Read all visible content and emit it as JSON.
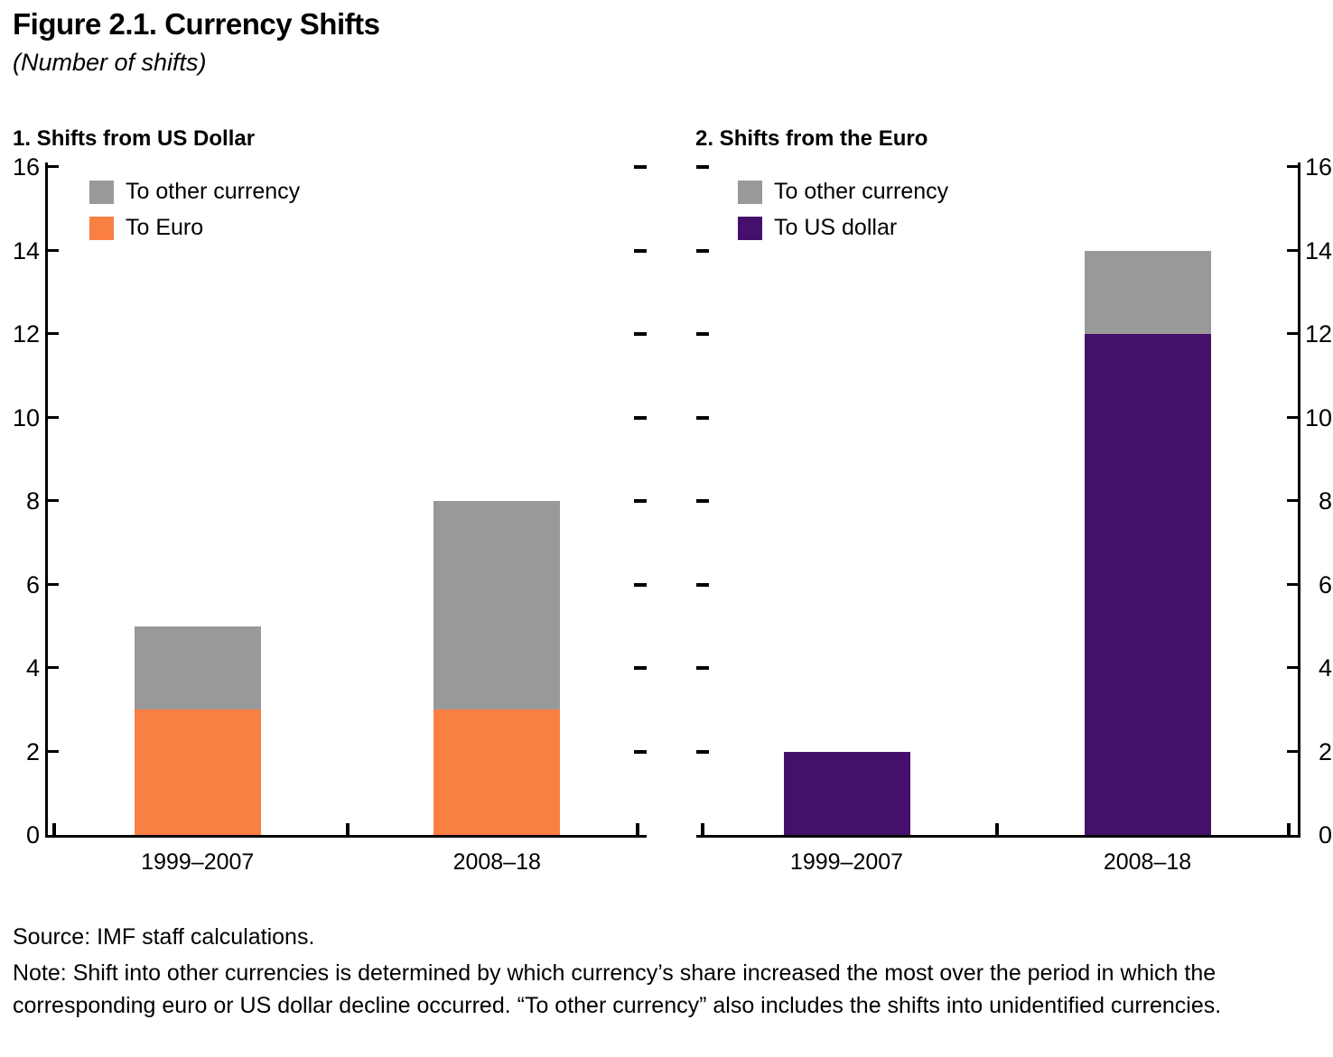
{
  "figure": {
    "title": "Figure 2.1. Currency Shifts",
    "subtitle": "(Number of shifts)"
  },
  "source_note": {
    "source": "Source: IMF staff calculations.",
    "note": "Note: Shift into other currencies is determined by which currency’s share increased the most over the period in which the corresponding euro or US dollar decline occurred. “To other currency” also includes the shifts into unidentified currencies."
  },
  "colors": {
    "gray": "#999999",
    "orange": "#FA7F43",
    "purple": "#45106B",
    "axis": "#000000"
  },
  "chart_data": [
    {
      "type": "bar",
      "stacked": true,
      "panel_title": "1. Shifts from US Dollar",
      "categories": [
        "1999–2007",
        "2008–18"
      ],
      "series": [
        {
          "name": "To Euro",
          "color": "#FA7F43",
          "values": [
            3,
            3
          ]
        },
        {
          "name": "To other currency",
          "color": "#999999",
          "values": [
            2,
            5
          ]
        }
      ],
      "totals": [
        5,
        8
      ],
      "legend": [
        {
          "label": "To other currency",
          "color": "#999999"
        },
        {
          "label": "To Euro",
          "color": "#FA7F43"
        }
      ],
      "ylim": [
        0,
        16
      ],
      "ytick_step": 2,
      "yaxis_side": "left",
      "legend_position": "top-left",
      "grid": false
    },
    {
      "type": "bar",
      "stacked": true,
      "panel_title": "2. Shifts from the Euro",
      "categories": [
        "1999–2007",
        "2008–18"
      ],
      "series": [
        {
          "name": "To US dollar",
          "color": "#45106B",
          "values": [
            2,
            12
          ]
        },
        {
          "name": "To other currency",
          "color": "#999999",
          "values": [
            0,
            2
          ]
        }
      ],
      "totals": [
        2,
        14
      ],
      "legend": [
        {
          "label": "To other currency",
          "color": "#999999"
        },
        {
          "label": "To US dollar",
          "color": "#45106B"
        }
      ],
      "ylim": [
        0,
        16
      ],
      "ytick_step": 2,
      "yaxis_side": "right",
      "legend_position": "top-left",
      "grid": false
    }
  ]
}
